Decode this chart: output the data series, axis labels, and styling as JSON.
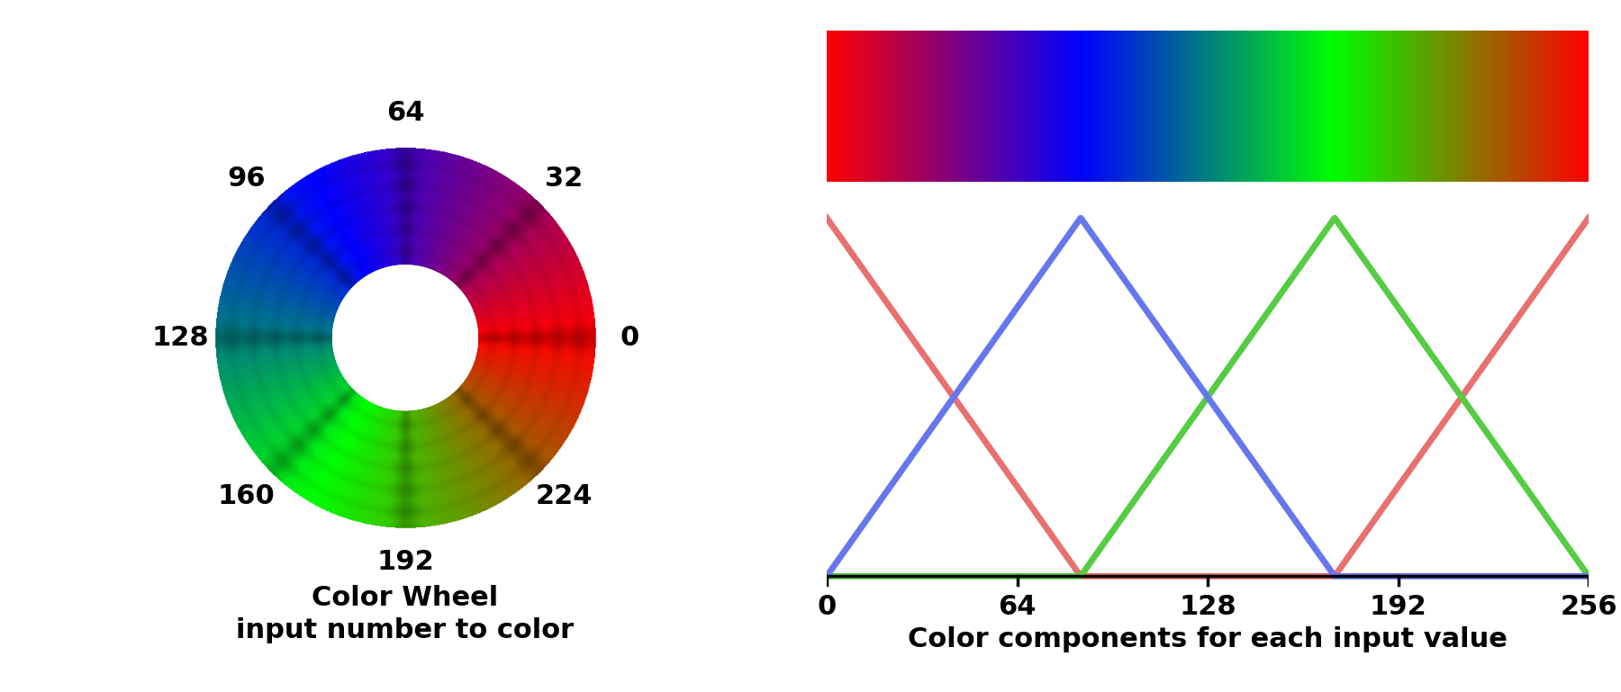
{
  "wheel_title_line1": "Color Wheel",
  "wheel_title_line2": "input number to color",
  "right_title": "Color components for each input value",
  "x_ticks": [
    0,
    64,
    128,
    192,
    256
  ],
  "line_color_red": "#E87070",
  "line_color_green": "#55CC44",
  "line_color_blue": "#6677EE",
  "line_width": 5.0,
  "font_family": "Comic Sans MS",
  "label_fontsize": 22,
  "title_fontsize": 22,
  "tick_fontsize": 22,
  "label_angles": {
    "0": 0,
    "32": 45,
    "64": 90,
    "96": 135,
    "128": 180,
    "160": 225,
    "192": 270,
    "224": 315
  },
  "wheel_inner_r": 0.38,
  "wheel_outer_r": 1.0,
  "wheel_label_r": 1.18
}
